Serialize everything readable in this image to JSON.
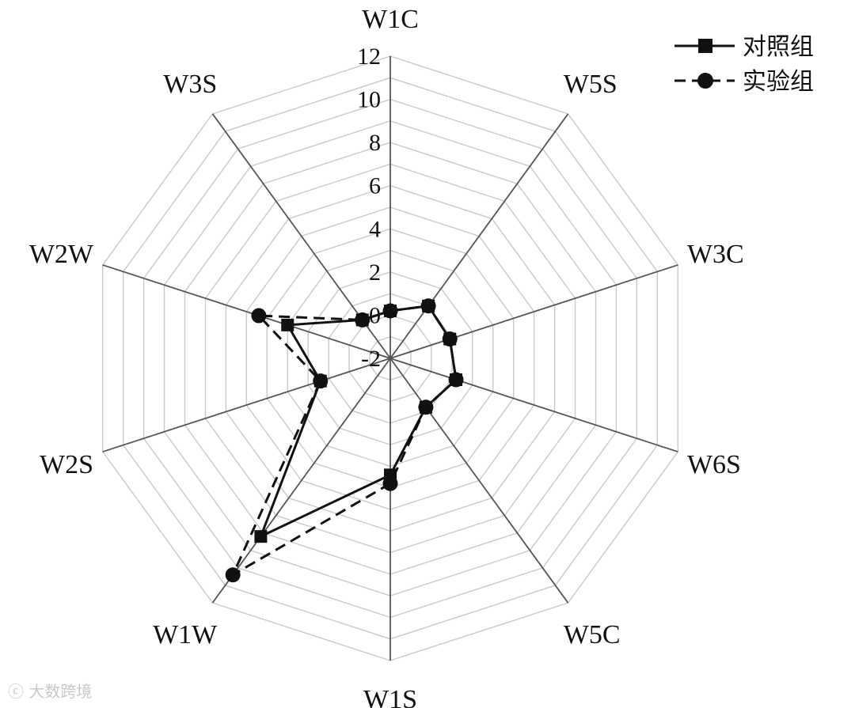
{
  "chart_data": {
    "type": "radar",
    "axes": [
      "W1C",
      "W5S",
      "W3C",
      "W6S",
      "W5C",
      "W1S",
      "W1W",
      "W2S",
      "W2W",
      "W3S"
    ],
    "r_ticks": [
      "12",
      "10",
      "8",
      "6",
      "4",
      "2",
      "0",
      "-2"
    ],
    "rlim": [
      -2,
      12
    ],
    "grid": true,
    "legend_position": "top-right",
    "series": [
      {
        "name": "对照组",
        "line_style": "solid",
        "marker": "square",
        "values": [
          0.2,
          1.0,
          0.9,
          1.2,
          0.8,
          3.4,
          8.2,
          1.4,
          3.0,
          0.2
        ]
      },
      {
        "name": "实验组",
        "line_style": "dashed",
        "marker": "circle",
        "values": [
          0.2,
          1.0,
          0.9,
          1.2,
          0.8,
          3.8,
          10.4,
          1.4,
          4.4,
          0.2
        ]
      }
    ]
  },
  "watermark": "大数跨境",
  "colors": {
    "grid": "#c9c9c9",
    "spoke": "#555555",
    "series": "#111111"
  }
}
